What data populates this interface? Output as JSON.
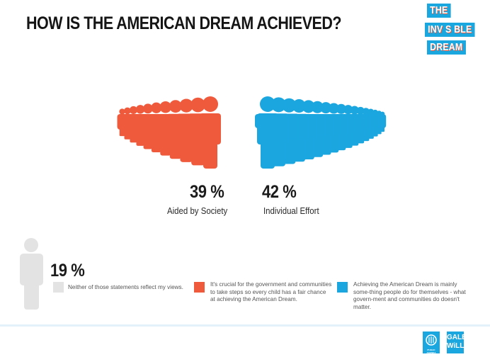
{
  "header": {
    "title": "HOW IS THE AMERICAN DREAM ACHIEVED?",
    "logo": {
      "lines": [
        "THE",
        "INV S BLE",
        "DREAM"
      ]
    }
  },
  "colors": {
    "society": "#ef5a3d",
    "individual": "#1ba6e0",
    "neither": "#e3e3e3",
    "logo": "#1aa7e0"
  },
  "chart_data": {
    "type": "pictograph",
    "title": "HOW IS THE AMERICAN DREAM ACHIEVED?",
    "unit": "%",
    "series": [
      {
        "name": "Aided by Society",
        "value": 39,
        "label": "39 %",
        "color": "#ef5a3d",
        "figures": 11,
        "description": "It's crucial for the government and communities to take steps so every child has a fair chance at achieving the American Dream."
      },
      {
        "name": "Individual Effort",
        "value": 42,
        "label": "42 %",
        "color": "#1ba6e0",
        "figures": 17,
        "description": "Achieving the American Dream is mainly something people do for themselves - what government and communities do doesn't matter."
      },
      {
        "name": "Neither",
        "value": 19,
        "label": "19 %",
        "color": "#e3e3e3",
        "figures": 1,
        "description": "Neither of those statements reflect my views."
      }
    ]
  },
  "results": {
    "society": {
      "pct": "39 %",
      "label": "Aided by Society"
    },
    "individual": {
      "pct": "42 %",
      "label": "Individual Effort"
    },
    "neither": {
      "pct": "19 %"
    }
  },
  "legend": {
    "neither": "Neither of those statements reflect my views.",
    "society": "It's crucial for the government and communities to take steps so every child has a fair chance at achieving the American Dream.",
    "individual": "Achieving the American Dream is mainly some-thing people do for themselves - what govern-ment and communities do doesn't matter."
  },
  "footer": {
    "logo1": {
      "text": "PUBLIC AGENDA",
      "icon": "public-agenda-emblem-icon"
    },
    "logo2": {
      "lines": [
        "GALE",
        "WiLL"
      ]
    }
  }
}
